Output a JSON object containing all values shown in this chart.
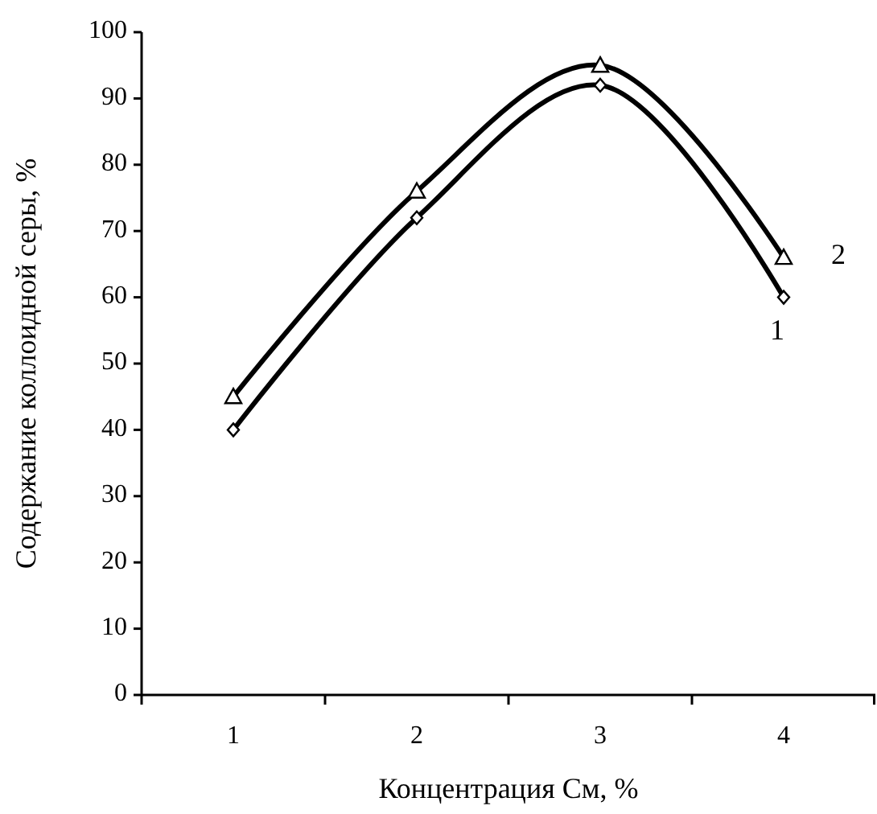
{
  "chart_data": {
    "type": "line",
    "xlabel": "Концентрация См, %",
    "ylabel": "Содержание коллоидной серы, %",
    "categories": [
      "1",
      "2",
      "3",
      "4"
    ],
    "ylim": [
      0,
      100
    ],
    "yticks": [
      0,
      10,
      20,
      30,
      40,
      50,
      60,
      70,
      80,
      90,
      100
    ],
    "grid": false,
    "series": [
      {
        "name": "1",
        "color": "#000000",
        "marker": "diamond",
        "values": [
          40,
          72,
          92,
          60
        ]
      },
      {
        "name": "2",
        "color": "#000000",
        "marker": "triangle",
        "values": [
          45,
          76,
          95,
          66
        ]
      }
    ]
  }
}
